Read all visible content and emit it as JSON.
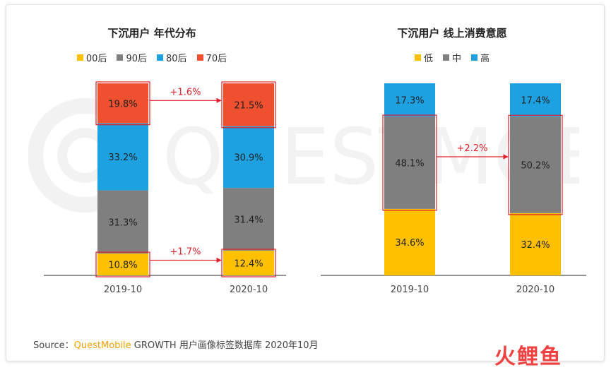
{
  "colors": {
    "yellow": "#ffc000",
    "gray": "#7f7f7f",
    "blue": "#1ea1e0",
    "red": "#ee5030",
    "highlight": "#e0202a"
  },
  "chart_data": [
    {
      "type": "bar",
      "stacked": true,
      "title": "下沉用户 年代分布",
      "categories": [
        "2019-10",
        "2020-10"
      ],
      "series": [
        {
          "name": "00后",
          "color": "#ffc000",
          "values": [
            10.8,
            12.4
          ],
          "labels": [
            "10.8%",
            "12.4%"
          ]
        },
        {
          "name": "90后",
          "color": "#7f7f7f",
          "values": [
            31.3,
            31.4
          ],
          "labels": [
            "31.3%",
            "31.4%"
          ]
        },
        {
          "name": "80后",
          "color": "#1ea1e0",
          "values": [
            33.2,
            30.9
          ],
          "labels": [
            "33.2%",
            "30.9%"
          ]
        },
        {
          "name": "70后",
          "color": "#ee5030",
          "values": [
            19.8,
            21.5
          ],
          "labels": [
            "19.8%",
            "21.5%"
          ]
        }
      ],
      "annotations": [
        {
          "text": "+1.6%",
          "series": "70后"
        },
        {
          "text": "+1.7%",
          "series": "00后"
        }
      ]
    },
    {
      "type": "bar",
      "stacked": true,
      "title": "下沉用户 线上消费意愿",
      "categories": [
        "2019-10",
        "2020-10"
      ],
      "series": [
        {
          "name": "低",
          "color": "#ffc000",
          "values": [
            34.6,
            32.4
          ],
          "labels": [
            "34.6%",
            "32.4%"
          ]
        },
        {
          "name": "中",
          "color": "#7f7f7f",
          "values": [
            48.1,
            50.2
          ],
          "labels": [
            "48.1%",
            "50.2%"
          ]
        },
        {
          "name": "高",
          "color": "#1ea1e0",
          "values": [
            17.3,
            17.4
          ],
          "labels": [
            "17.3%",
            "17.4%"
          ]
        }
      ],
      "annotations": [
        {
          "text": "+2.2%",
          "series": "中"
        }
      ]
    }
  ],
  "footer": {
    "prefix": "Source：",
    "brand": "QuestMobile",
    "suffix": " GROWTH 用户画像标签数据库 2020年10月"
  },
  "logo": "火鲤鱼",
  "watermark": "QUESTMOBILE"
}
